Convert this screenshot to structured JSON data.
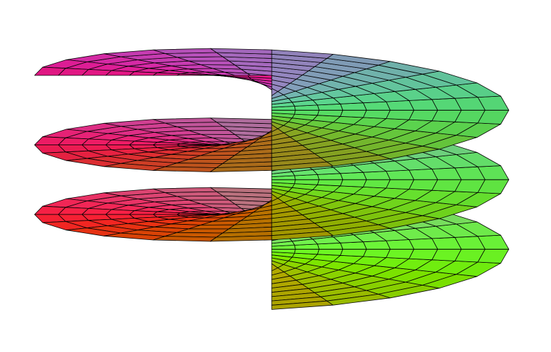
{
  "figure": {
    "type": "3d-surface",
    "surface": "helicoid",
    "turns": 2.75,
    "axes_shown": false,
    "grid_lines_color": "#000000",
    "background": "#ffffff",
    "colors": {
      "left": "#e0607a",
      "back": "#6a5fa8",
      "right": "#66dd55",
      "front": "#cfcf88",
      "bottom": "#e8803a"
    }
  }
}
